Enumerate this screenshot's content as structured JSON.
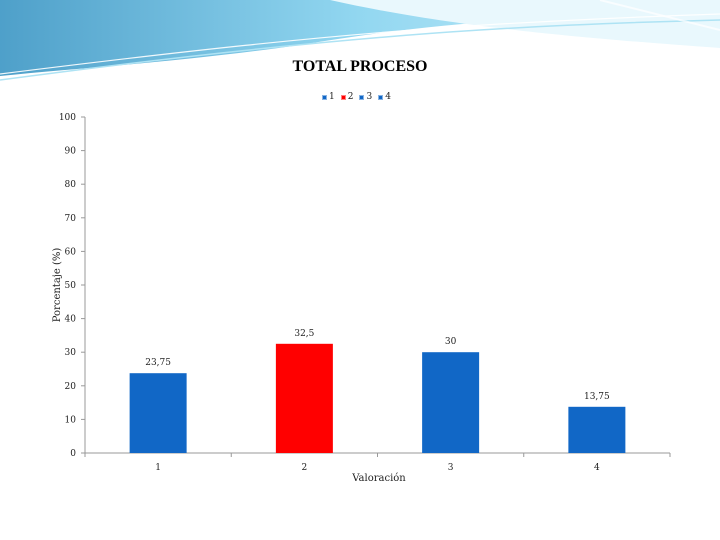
{
  "colors": {
    "primary": "#1167c6",
    "highlight": "#ff0000",
    "axis": "#999999",
    "decor": "#8fd3ee"
  },
  "chart_data": {
    "type": "bar",
    "title": "TOTAL PROCESO",
    "xlabel": "Valoración",
    "ylabel": "Porcentaje (%)",
    "categories": [
      "1",
      "2",
      "3",
      "4"
    ],
    "values": [
      23.75,
      32.5,
      30,
      13.75
    ],
    "data_labels": [
      "23,75",
      "32,5",
      "30",
      "13,75"
    ],
    "bar_colors": [
      "#1167c6",
      "#ff0000",
      "#1167c6",
      "#1167c6"
    ],
    "ylim": [
      0,
      100
    ],
    "yticks": [
      0,
      10,
      20,
      30,
      40,
      50,
      60,
      70,
      80,
      90,
      100
    ],
    "grid": false,
    "legend": {
      "placement": "top-center",
      "entries": [
        {
          "label": "1",
          "color": "#1167c6"
        },
        {
          "label": "2",
          "color": "#ff0000"
        },
        {
          "label": "3",
          "color": "#1167c6"
        },
        {
          "label": "4",
          "color": "#1167c6"
        }
      ]
    }
  }
}
